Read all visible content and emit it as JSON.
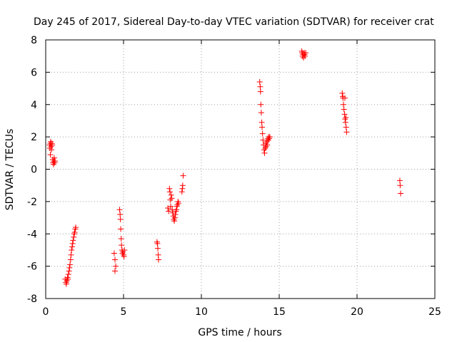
{
  "chart_data": {
    "type": "scatter",
    "title": "Day 245 of 2017, Sidereal Day-to-day VTEC variation (SDTVAR) for receiver crat",
    "xlabel": "GPS time / hours",
    "ylabel": "SDTVAR / TECUs",
    "xlim": [
      0,
      25
    ],
    "ylim": [
      -8,
      8
    ],
    "xticks": [
      0,
      5,
      10,
      15,
      20,
      25
    ],
    "yticks": [
      -8,
      -6,
      -4,
      -2,
      0,
      2,
      4,
      6,
      8
    ],
    "xtick_labels": [
      "0",
      "5",
      "10",
      "15",
      "20",
      "25"
    ],
    "ytick_labels": [
      "-8",
      "-6",
      "-4",
      "-2",
      "0",
      "2",
      "4",
      "6",
      "8"
    ],
    "grid": true,
    "marker": "+",
    "color": "#ff0000",
    "series": [
      {
        "name": "SDTVAR",
        "points": [
          [
            0.25,
            1.5
          ],
          [
            0.27,
            1.3
          ],
          [
            0.3,
            1.6
          ],
          [
            0.32,
            1.7
          ],
          [
            0.35,
            1.4
          ],
          [
            0.37,
            1.2
          ],
          [
            0.4,
            1.6
          ],
          [
            0.42,
            1.5
          ],
          [
            0.3,
            0.9
          ],
          [
            0.45,
            0.6
          ],
          [
            0.47,
            0.4
          ],
          [
            0.5,
            0.3
          ],
          [
            0.52,
            0.5
          ],
          [
            0.55,
            0.7
          ],
          [
            0.57,
            0.4
          ],
          [
            0.6,
            0.5
          ],
          [
            1.25,
            -6.8
          ],
          [
            1.3,
            -7.0
          ],
          [
            1.33,
            -7.1
          ],
          [
            1.36,
            -6.9
          ],
          [
            1.4,
            -6.7
          ],
          [
            1.43,
            -6.8
          ],
          [
            1.46,
            -6.5
          ],
          [
            1.5,
            -6.3
          ],
          [
            1.53,
            -6.1
          ],
          [
            1.56,
            -5.9
          ],
          [
            1.6,
            -5.6
          ],
          [
            1.63,
            -5.3
          ],
          [
            1.66,
            -5.0
          ],
          [
            1.7,
            -4.8
          ],
          [
            1.73,
            -4.6
          ],
          [
            1.76,
            -4.4
          ],
          [
            1.8,
            -4.2
          ],
          [
            1.83,
            -4.0
          ],
          [
            1.86,
            -3.9
          ],
          [
            1.9,
            -3.7
          ],
          [
            1.93,
            -3.6
          ],
          [
            4.4,
            -5.2
          ],
          [
            4.45,
            -5.6
          ],
          [
            4.5,
            -6.0
          ],
          [
            4.45,
            -6.3
          ],
          [
            4.75,
            -2.5
          ],
          [
            4.78,
            -2.8
          ],
          [
            4.8,
            -3.1
          ],
          [
            4.82,
            -3.7
          ],
          [
            4.85,
            -4.3
          ],
          [
            4.87,
            -4.7
          ],
          [
            4.9,
            -5.0
          ],
          [
            4.93,
            -5.2
          ],
          [
            4.96,
            -5.1
          ],
          [
            5.0,
            -5.3
          ],
          [
            5.03,
            -5.4
          ],
          [
            5.06,
            -5.0
          ],
          [
            7.15,
            -4.5
          ],
          [
            7.18,
            -4.6
          ],
          [
            7.2,
            -4.9
          ],
          [
            7.23,
            -5.3
          ],
          [
            7.25,
            -5.6
          ],
          [
            7.85,
            -2.4
          ],
          [
            7.9,
            -2.6
          ],
          [
            7.95,
            -1.2
          ],
          [
            7.98,
            -1.4
          ],
          [
            8.0,
            -1.9
          ],
          [
            8.03,
            -2.3
          ],
          [
            8.06,
            -1.6
          ],
          [
            8.1,
            -1.8
          ],
          [
            8.13,
            -2.5
          ],
          [
            8.16,
            -2.7
          ],
          [
            8.2,
            -2.9
          ],
          [
            8.23,
            -3.1
          ],
          [
            8.26,
            -3.2
          ],
          [
            8.3,
            -3.0
          ],
          [
            8.33,
            -2.8
          ],
          [
            8.36,
            -2.6
          ],
          [
            8.4,
            -2.5
          ],
          [
            8.43,
            -2.3
          ],
          [
            8.46,
            -2.2
          ],
          [
            8.5,
            -2.0
          ],
          [
            8.53,
            -2.1
          ],
          [
            8.75,
            -1.4
          ],
          [
            8.78,
            -1.2
          ],
          [
            8.8,
            -1.0
          ],
          [
            8.83,
            -0.4
          ],
          [
            13.75,
            5.4
          ],
          [
            13.78,
            5.1
          ],
          [
            13.8,
            4.8
          ],
          [
            13.82,
            4.0
          ],
          [
            13.85,
            3.5
          ],
          [
            13.88,
            2.9
          ],
          [
            13.9,
            2.6
          ],
          [
            13.93,
            2.2
          ],
          [
            13.96,
            1.8
          ],
          [
            14.0,
            1.5
          ],
          [
            14.03,
            1.2
          ],
          [
            14.06,
            1.0
          ],
          [
            14.1,
            1.3
          ],
          [
            14.13,
            1.6
          ],
          [
            14.16,
            1.4
          ],
          [
            14.2,
            1.7
          ],
          [
            14.23,
            1.5
          ],
          [
            14.26,
            1.9
          ],
          [
            14.3,
            1.8
          ],
          [
            14.33,
            2.0
          ],
          [
            14.36,
            1.9
          ],
          [
            14.4,
            2.0
          ],
          [
            16.45,
            7.3
          ],
          [
            16.48,
            7.2
          ],
          [
            16.5,
            7.0
          ],
          [
            16.53,
            7.1
          ],
          [
            16.56,
            6.9
          ],
          [
            16.6,
            7.2
          ],
          [
            16.63,
            7.1
          ],
          [
            16.66,
            7.0
          ],
          [
            16.7,
            7.2
          ],
          [
            19.05,
            4.7
          ],
          [
            19.08,
            4.5
          ],
          [
            19.1,
            4.4
          ],
          [
            19.13,
            4.0
          ],
          [
            19.16,
            3.7
          ],
          [
            19.2,
            3.4
          ],
          [
            19.23,
            3.1
          ],
          [
            19.26,
            2.9
          ],
          [
            19.3,
            2.6
          ],
          [
            19.33,
            2.3
          ],
          [
            19.28,
            3.2
          ],
          [
            19.22,
            4.4
          ],
          [
            22.75,
            -0.7
          ],
          [
            22.77,
            -1.0
          ],
          [
            22.8,
            -1.5
          ]
        ]
      }
    ]
  }
}
